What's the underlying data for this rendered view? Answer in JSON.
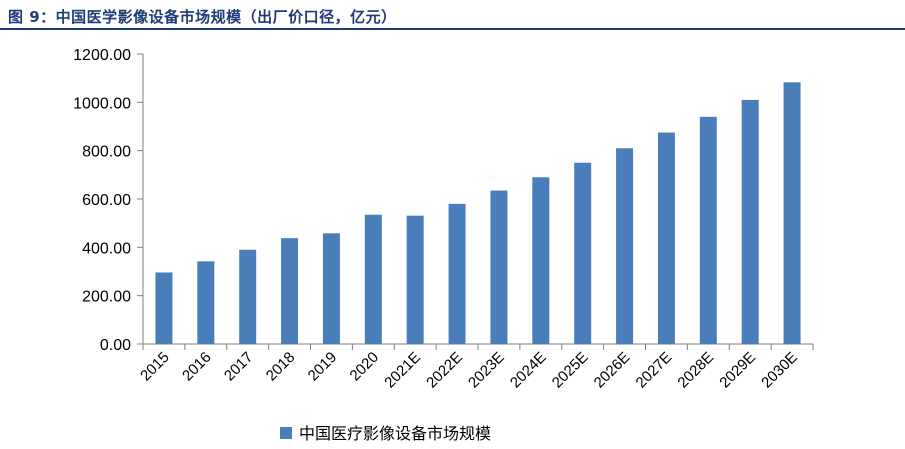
{
  "figure": {
    "title": "图 9：中国医学影像设备市场规模（出厂价口径，亿元）"
  },
  "colors": {
    "bar": "#4a7ebb",
    "title": "#1f3b73",
    "axis": "#7f7f7f"
  },
  "chart_data": {
    "type": "bar",
    "title": "图 9：中国医学影像设备市场规模（出厂价口径，亿元）",
    "categories": [
      "2015",
      "2016",
      "2017",
      "2018",
      "2019",
      "2020",
      "2021E",
      "2022E",
      "2023E",
      "2024E",
      "2025E",
      "2026E",
      "2027E",
      "2028E",
      "2029E",
      "2030E"
    ],
    "series": [
      {
        "name": "中国医疗影像设备市场规模",
        "values": [
          296,
          342,
          390,
          438,
          458,
          535,
          531,
          580,
          635,
          690,
          750,
          810,
          875,
          940,
          1010,
          1083
        ]
      }
    ],
    "ylim": [
      0,
      1200
    ],
    "yticks": [
      "0.00",
      "200.00",
      "400.00",
      "600.00",
      "800.00",
      "1000.00",
      "1200.00"
    ],
    "xlabel": "",
    "ylabel": "",
    "grid": false,
    "legend": "bottom"
  }
}
